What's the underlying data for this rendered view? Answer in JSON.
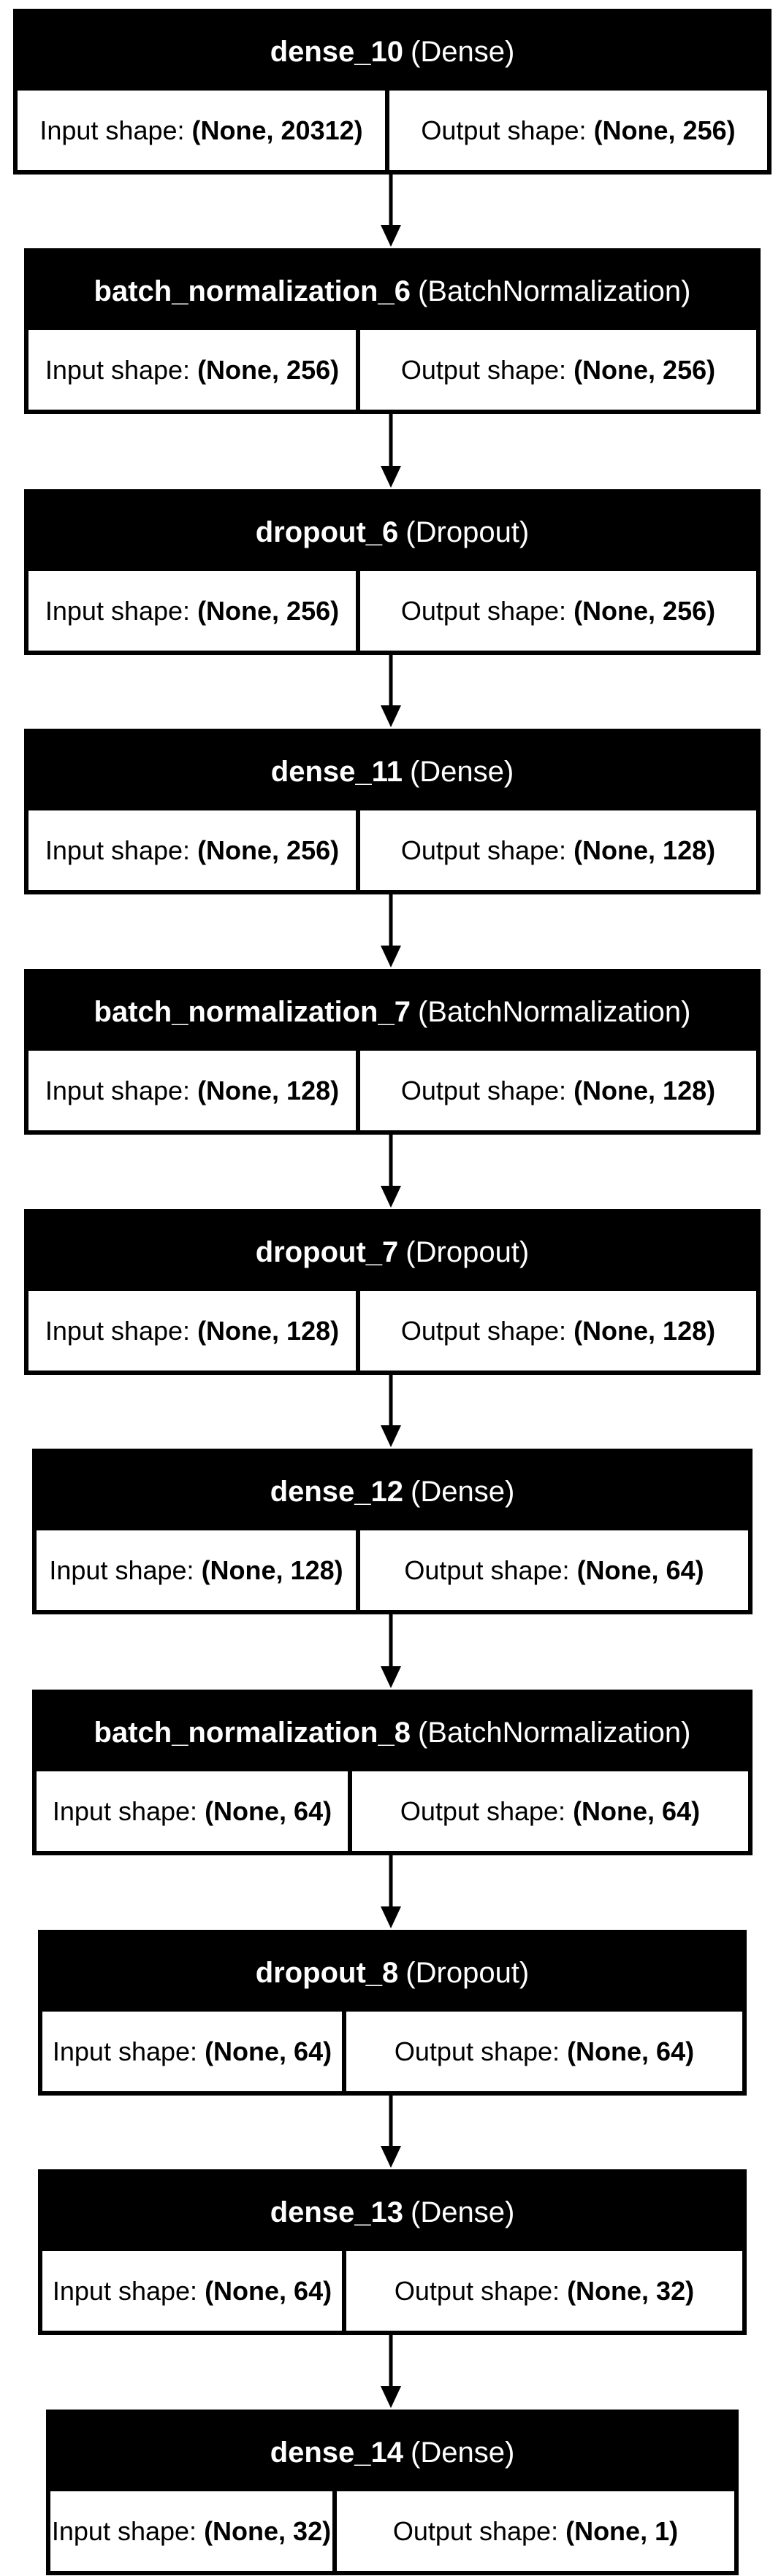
{
  "labels": {
    "input": "Input shape:",
    "output": "Output shape:"
  },
  "layers": [
    {
      "name": "dense_10",
      "type": "(Dense)",
      "input_shape": "(None, 20312)",
      "output_shape": "(None, 256)"
    },
    {
      "name": "batch_normalization_6",
      "type": "(BatchNormalization)",
      "input_shape": "(None, 256)",
      "output_shape": "(None, 256)"
    },
    {
      "name": "dropout_6",
      "type": "(Dropout)",
      "input_shape": "(None, 256)",
      "output_shape": "(None, 256)"
    },
    {
      "name": "dense_11",
      "type": "(Dense)",
      "input_shape": "(None, 256)",
      "output_shape": "(None, 128)"
    },
    {
      "name": "batch_normalization_7",
      "type": "(BatchNormalization)",
      "input_shape": "(None, 128)",
      "output_shape": "(None, 128)"
    },
    {
      "name": "dropout_7",
      "type": "(Dropout)",
      "input_shape": "(None, 128)",
      "output_shape": "(None, 128)"
    },
    {
      "name": "dense_12",
      "type": "(Dense)",
      "input_shape": "(None, 128)",
      "output_shape": "(None, 64)"
    },
    {
      "name": "batch_normalization_8",
      "type": "(BatchNormalization)",
      "input_shape": "(None, 64)",
      "output_shape": "(None, 64)"
    },
    {
      "name": "dropout_8",
      "type": "(Dropout)",
      "input_shape": "(None, 64)",
      "output_shape": "(None, 64)"
    },
    {
      "name": "dense_13",
      "type": "(Dense)",
      "input_shape": "(None, 64)",
      "output_shape": "(None, 32)"
    },
    {
      "name": "dense_14",
      "type": "(Dense)",
      "input_shape": "(None, 32)",
      "output_shape": "(None, 1)"
    }
  ]
}
